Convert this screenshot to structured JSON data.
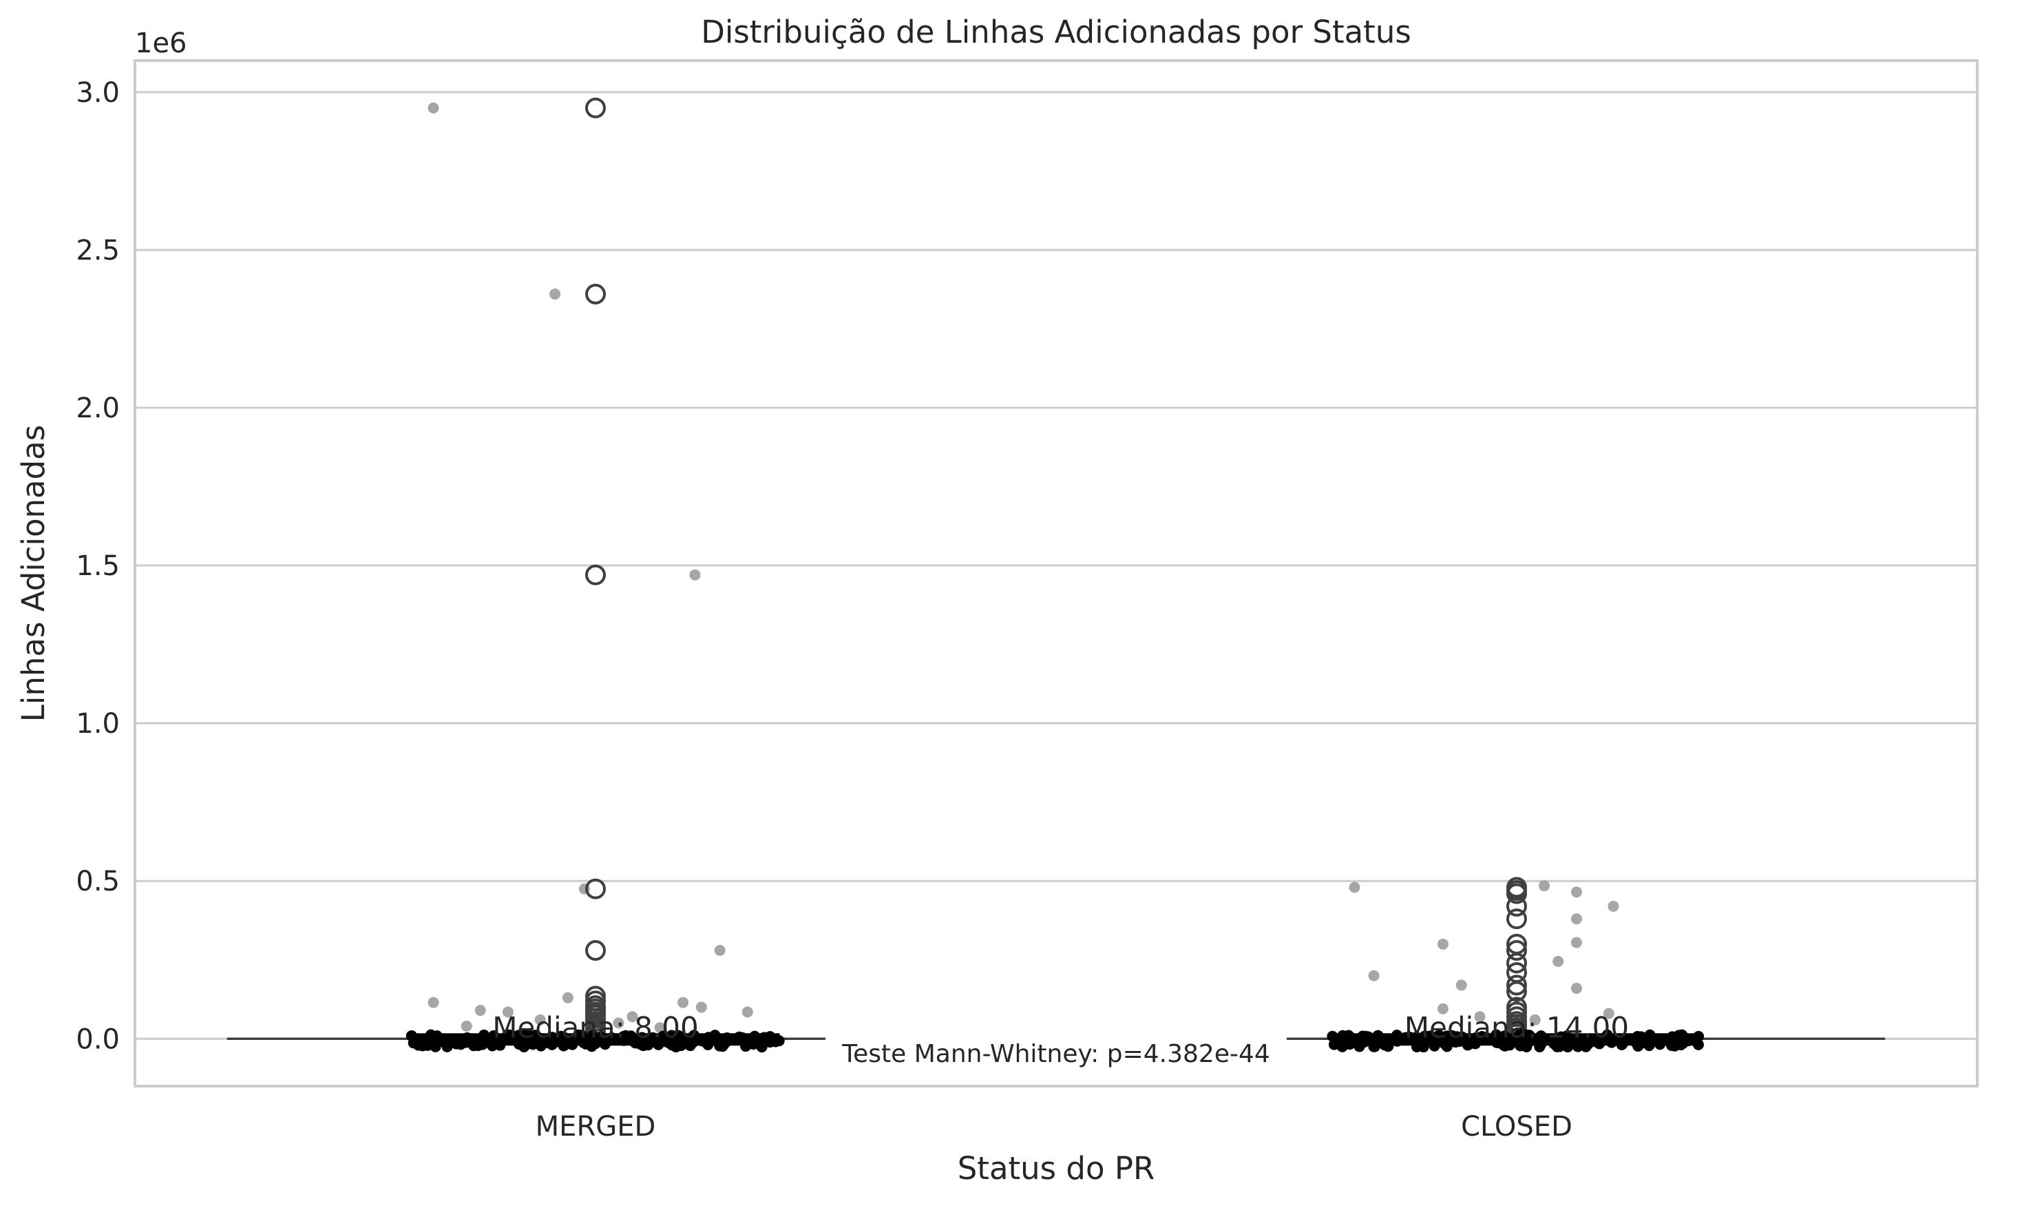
{
  "chart_data": {
    "type": "box",
    "title": "Distribuição de Linhas Adicionadas por Status",
    "xlabel": "Status do PR",
    "ylabel": "Linhas Adicionadas",
    "y_offset_label": "1e6",
    "y_scale_factor": 1000000,
    "ylim": [
      -150000,
      3100000
    ],
    "yticks": [
      0,
      500000,
      1000000,
      1500000,
      2000000,
      2500000,
      3000000
    ],
    "ytick_labels": [
      "0.0",
      "0.5",
      "1.0",
      "1.5",
      "2.0",
      "2.5",
      "3.0"
    ],
    "categories": [
      "MERGED",
      "CLOSED"
    ],
    "grid": true,
    "colors": {
      "box_line": "#404040",
      "outlier_edge": "#404040",
      "jitter": "#a6a6a6",
      "grid": "#cccccc",
      "spine": "#cccccc",
      "dense": "#000000"
    },
    "series": [
      {
        "category": "MERGED",
        "median": 8,
        "median_label": "Mediana: 8.00",
        "outliers": [
          2950000,
          2360000,
          1470000,
          475000,
          280000,
          135000,
          120000,
          105000,
          95000,
          85000,
          75000,
          65000,
          55000,
          45000,
          35000,
          25000,
          15000
        ],
        "jitter": [
          {
            "x": -0.176,
            "y": 2950000
          },
          {
            "x": -0.044,
            "y": 2360000
          },
          {
            "x": 0.108,
            "y": 1470000
          },
          {
            "x": -0.012,
            "y": 475000
          },
          {
            "x": 0.135,
            "y": 280000
          },
          {
            "x": -0.176,
            "y": 115000
          },
          {
            "x": -0.125,
            "y": 90000
          },
          {
            "x": -0.095,
            "y": 85000
          },
          {
            "x": -0.03,
            "y": 130000
          },
          {
            "x": 0.095,
            "y": 115000
          },
          {
            "x": 0.115,
            "y": 100000
          },
          {
            "x": 0.165,
            "y": 85000
          },
          {
            "x": 0.04,
            "y": 70000
          },
          {
            "x": -0.06,
            "y": 60000
          },
          {
            "x": 0.025,
            "y": 50000
          },
          {
            "x": -0.14,
            "y": 40000
          },
          {
            "x": 0.07,
            "y": 35000
          }
        ]
      },
      {
        "category": "CLOSED",
        "median": 14,
        "median_label": "Mediana: 14.00",
        "outliers": [
          480000,
          470000,
          460000,
          420000,
          380000,
          300000,
          280000,
          240000,
          210000,
          170000,
          150000,
          100000,
          85000,
          70000,
          55000,
          45000,
          35000,
          25000,
          15000
        ],
        "jitter": [
          {
            "x": -0.176,
            "y": 480000
          },
          {
            "x": -0.08,
            "y": 300000
          },
          {
            "x": -0.155,
            "y": 200000
          },
          {
            "x": -0.06,
            "y": 170000
          },
          {
            "x": -0.08,
            "y": 95000
          },
          {
            "x": -0.04,
            "y": 70000
          },
          {
            "x": 0.03,
            "y": 485000
          },
          {
            "x": 0.065,
            "y": 465000
          },
          {
            "x": 0.105,
            "y": 420000
          },
          {
            "x": 0.065,
            "y": 380000
          },
          {
            "x": 0.065,
            "y": 305000
          },
          {
            "x": 0.045,
            "y": 245000
          },
          {
            "x": 0.065,
            "y": 160000
          },
          {
            "x": 0.1,
            "y": 80000
          },
          {
            "x": 0.02,
            "y": 60000
          }
        ]
      }
    ],
    "annotation": "Teste Mann-Whitney: p=4.382e-44"
  }
}
